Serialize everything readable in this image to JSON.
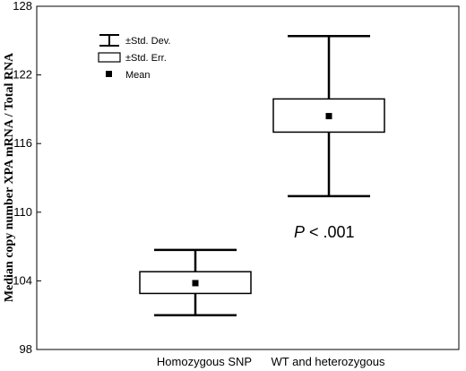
{
  "chart_data": {
    "type": "box",
    "ylabel": "Median copy number XPA mRNA / Total RNA",
    "xlabel": "",
    "ylim": [
      98,
      128
    ],
    "yticks": [
      98,
      104,
      110,
      116,
      122,
      128
    ],
    "categories": [
      "Homozygous SNP",
      "WT and heterozygous"
    ],
    "groups": [
      {
        "category": "Homozygous SNP",
        "mean": 103.8,
        "se_low": 102.9,
        "se_high": 104.8,
        "sd_low": 101.0,
        "sd_high": 106.7
      },
      {
        "category": "WT and heterozygous",
        "mean": 118.4,
        "se_low": 117.0,
        "se_high": 119.9,
        "sd_low": 111.4,
        "sd_high": 125.4
      }
    ],
    "legend": {
      "position": "top-left",
      "items": [
        "±Std. Dev.",
        "±Std. Err.",
        "Mean"
      ]
    },
    "annotation": {
      "prefix": "P",
      "text": " < .001"
    },
    "grid": false
  }
}
